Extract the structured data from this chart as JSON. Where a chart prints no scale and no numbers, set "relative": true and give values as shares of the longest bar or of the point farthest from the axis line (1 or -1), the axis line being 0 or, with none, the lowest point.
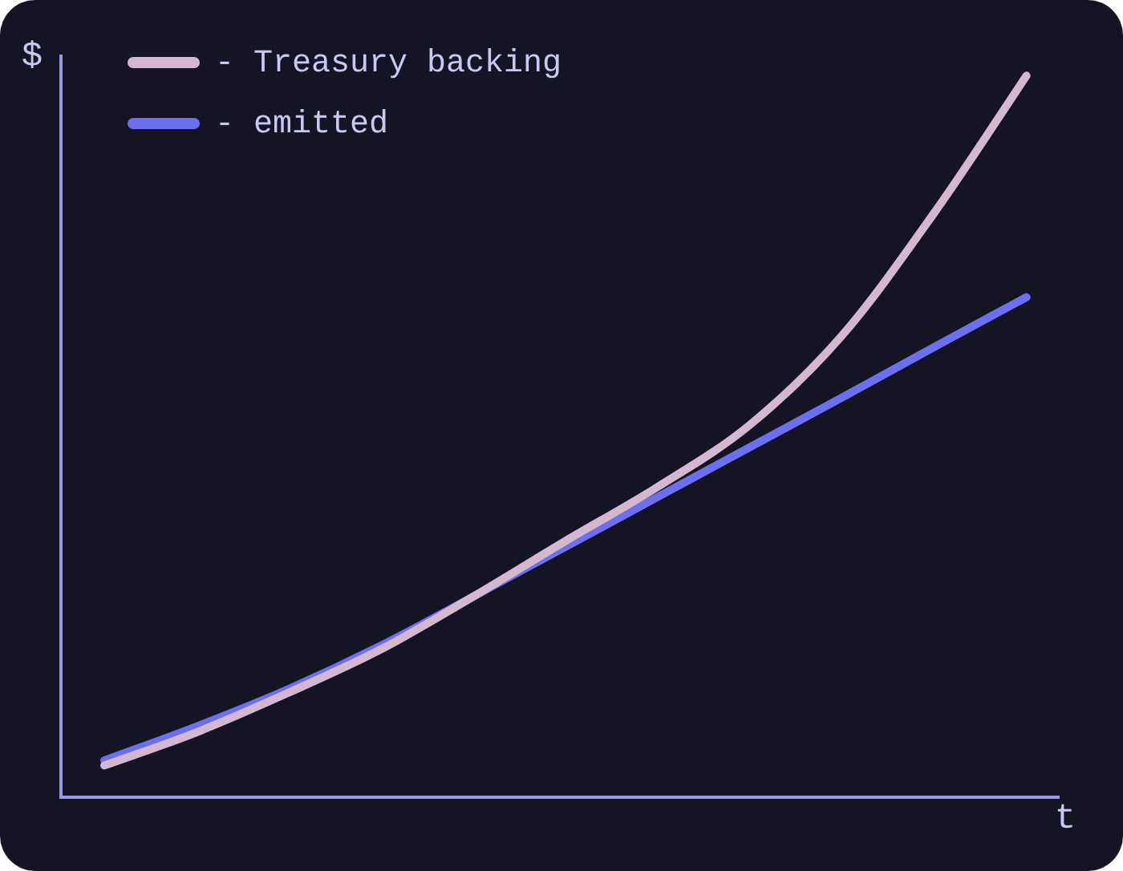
{
  "chart_data": {
    "type": "line",
    "relative": true,
    "xlabel": "t",
    "ylabel": "$",
    "categories": [
      null,
      null,
      null,
      null,
      null,
      null,
      null,
      null,
      null,
      null,
      null
    ],
    "legend": "top left",
    "grid": false,
    "tick_labels": false,
    "marker": "none",
    "series": [
      {
        "name": "- Treasury backing",
        "color": "#d4b8d0",
        "values": [
          0.044,
          0.09,
          0.145,
          0.205,
          0.278,
          0.355,
          0.43,
          0.516,
          0.64,
          0.81,
          1.0
        ]
      },
      {
        "name": "- emitted",
        "color": "#6b6ff0",
        "values": [
          0.051,
          0.098,
          0.15,
          0.21,
          0.278,
          0.347,
          0.416,
          0.485,
          0.554,
          0.624,
          0.693
        ]
      }
    ]
  }
}
